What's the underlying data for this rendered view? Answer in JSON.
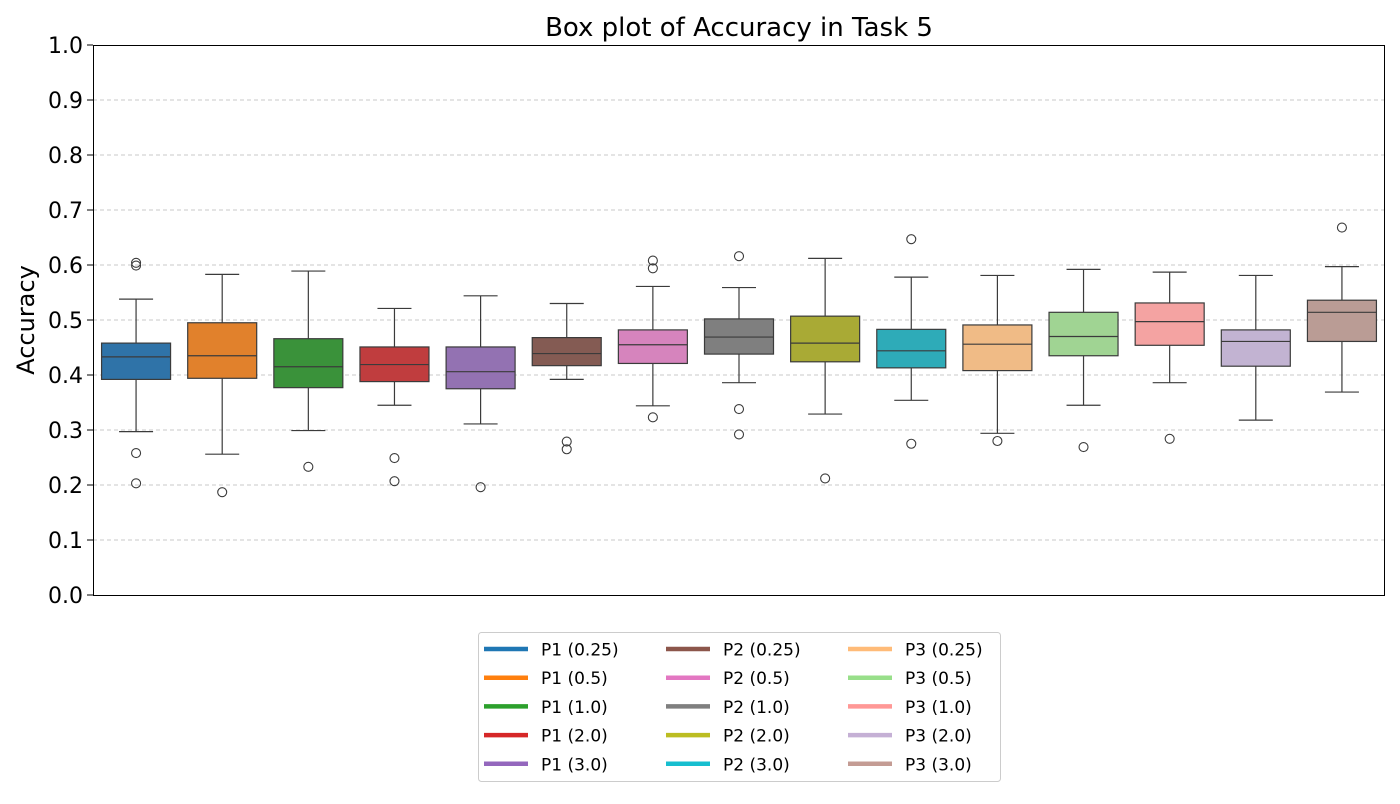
{
  "chart_data": {
    "type": "box",
    "title": "Box plot of Accuracy in Task 5",
    "xlabel": "",
    "ylabel": "Accuracy",
    "ylim": [
      0.0,
      1.0
    ],
    "yticks": [
      "0.0",
      "0.1",
      "0.2",
      "0.3",
      "0.4",
      "0.5",
      "0.6",
      "0.7",
      "0.8",
      "0.9",
      "1.0"
    ],
    "grid": "y dashed",
    "legend_position": "bottom-center",
    "legend_columns": 3,
    "series": [
      {
        "name": "P1 (0.25)",
        "color": "#2f73a8",
        "legend_color": "#1f77b4",
        "whisker_low": 0.297,
        "q1": 0.392,
        "median": 0.433,
        "q3": 0.458,
        "whisker_high": 0.538,
        "outliers": [
          0.604,
          0.599,
          0.258,
          0.203
        ]
      },
      {
        "name": "P1 (0.5)",
        "color": "#e1812c",
        "legend_color": "#ff7f0e",
        "whisker_low": 0.256,
        "q1": 0.394,
        "median": 0.435,
        "q3": 0.495,
        "whisker_high": 0.583,
        "outliers": [
          0.187
        ]
      },
      {
        "name": "P1 (1.0)",
        "color": "#3a923a",
        "legend_color": "#2ca02c",
        "whisker_low": 0.299,
        "q1": 0.377,
        "median": 0.415,
        "q3": 0.466,
        "whisker_high": 0.589,
        "outliers": [
          0.233
        ]
      },
      {
        "name": "P1 (2.0)",
        "color": "#c03d3e",
        "legend_color": "#d62728",
        "whisker_low": 0.345,
        "q1": 0.388,
        "median": 0.419,
        "q3": 0.451,
        "whisker_high": 0.521,
        "outliers": [
          0.249,
          0.207
        ]
      },
      {
        "name": "P1 (3.0)",
        "color": "#9372b2",
        "legend_color": "#9467bd",
        "whisker_low": 0.311,
        "q1": 0.375,
        "median": 0.406,
        "q3": 0.451,
        "whisker_high": 0.544,
        "outliers": [
          0.196
        ]
      },
      {
        "name": "P2 (0.25)",
        "color": "#845b53",
        "legend_color": "#8c564b",
        "whisker_low": 0.392,
        "q1": 0.417,
        "median": 0.439,
        "q3": 0.468,
        "whisker_high": 0.53,
        "outliers": [
          0.279,
          0.265
        ]
      },
      {
        "name": "P2 (0.5)",
        "color": "#d684bd",
        "legend_color": "#e377c2",
        "whisker_low": 0.344,
        "q1": 0.421,
        "median": 0.455,
        "q3": 0.482,
        "whisker_high": 0.561,
        "outliers": [
          0.608,
          0.594,
          0.323
        ]
      },
      {
        "name": "P2 (1.0)",
        "color": "#7f7f7f",
        "legend_color": "#7f7f7f",
        "whisker_low": 0.386,
        "q1": 0.438,
        "median": 0.469,
        "q3": 0.502,
        "whisker_high": 0.559,
        "outliers": [
          0.616,
          0.338,
          0.292
        ]
      },
      {
        "name": "P2 (2.0)",
        "color": "#a9aa35",
        "legend_color": "#bcbd22",
        "whisker_low": 0.329,
        "q1": 0.424,
        "median": 0.458,
        "q3": 0.507,
        "whisker_high": 0.612,
        "outliers": [
          0.212
        ]
      },
      {
        "name": "P2 (3.0)",
        "color": "#2eabb8",
        "legend_color": "#17becf",
        "whisker_low": 0.354,
        "q1": 0.413,
        "median": 0.444,
        "q3": 0.483,
        "whisker_high": 0.578,
        "outliers": [
          0.647,
          0.275
        ]
      },
      {
        "name": "P3 (0.25)",
        "color": "#f0bb86",
        "legend_color": "#ffbb78",
        "whisker_low": 0.294,
        "q1": 0.408,
        "median": 0.456,
        "q3": 0.491,
        "whisker_high": 0.581,
        "outliers": [
          0.28
        ]
      },
      {
        "name": "P3 (0.5)",
        "color": "#a0d493",
        "legend_color": "#98df8a",
        "whisker_low": 0.345,
        "q1": 0.435,
        "median": 0.47,
        "q3": 0.514,
        "whisker_high": 0.592,
        "outliers": [
          0.269
        ]
      },
      {
        "name": "P3 (1.0)",
        "color": "#f4a3a2",
        "legend_color": "#ff9896",
        "whisker_low": 0.386,
        "q1": 0.454,
        "median": 0.497,
        "q3": 0.531,
        "whisker_high": 0.587,
        "outliers": [
          0.284
        ]
      },
      {
        "name": "P3 (2.0)",
        "color": "#c2b3d2",
        "legend_color": "#c5b0d5",
        "whisker_low": 0.318,
        "q1": 0.416,
        "median": 0.461,
        "q3": 0.482,
        "whisker_high": 0.581,
        "outliers": []
      },
      {
        "name": "P3 (3.0)",
        "color": "#ba9c95",
        "legend_color": "#c49c94",
        "whisker_low": 0.369,
        "q1": 0.461,
        "median": 0.514,
        "q3": 0.536,
        "whisker_high": 0.597,
        "outliers": [
          0.668
        ]
      }
    ]
  }
}
